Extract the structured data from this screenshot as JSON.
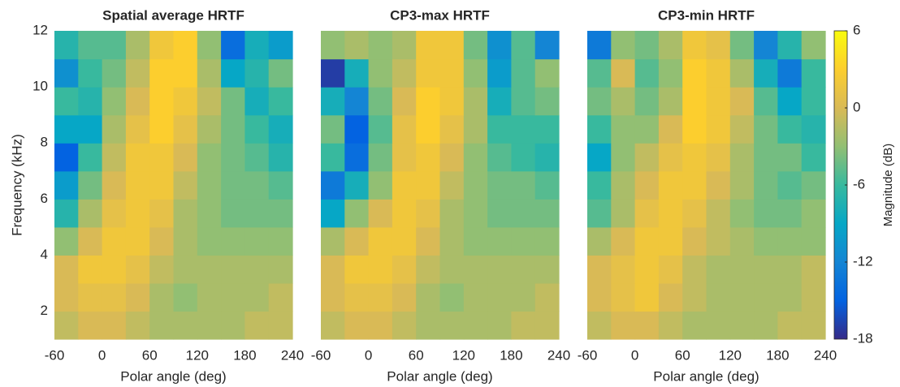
{
  "chart_data": [
    {
      "type": "heatmap",
      "title": "Spatial average HRTF",
      "xlabel": "Polar angle (deg)",
      "ylabel": "Frequency (kHz)",
      "x": [
        -45,
        -15,
        15,
        45,
        75,
        105,
        135,
        165,
        195,
        225
      ],
      "y": [
        1.5,
        2.5,
        3.5,
        4.5,
        5.5,
        6.5,
        7.5,
        8.5,
        9.5,
        10.5,
        11.5
      ],
      "z": [
        [
          -1,
          0,
          0,
          -1,
          -2,
          -2,
          -2,
          -2,
          -1,
          -1
        ],
        [
          0,
          1,
          1,
          0,
          -2,
          -3,
          -2,
          -2,
          -2,
          -1
        ],
        [
          0,
          2,
          2,
          1,
          -1,
          -2,
          -2,
          -2,
          -2,
          -2
        ],
        [
          -3,
          0,
          2,
          2,
          0,
          -2,
          -3,
          -3,
          -3,
          -3
        ],
        [
          -7,
          -2,
          1,
          2,
          1,
          -2,
          -3,
          -4,
          -4,
          -4
        ],
        [
          -10,
          -4,
          0,
          2,
          2,
          -1,
          -3,
          -4,
          -4,
          -5
        ],
        [
          -15,
          -6,
          -1,
          2,
          2,
          0,
          -3,
          -4,
          -5,
          -7
        ],
        [
          -9,
          -9,
          -2,
          1,
          3,
          1,
          -2,
          -4,
          -6,
          -8
        ],
        [
          -6,
          -7,
          -3,
          0,
          3,
          2,
          -1,
          -4,
          -8,
          -6
        ],
        [
          -11,
          -6,
          -4,
          -1,
          3,
          3,
          -2,
          -9,
          -7,
          -4
        ],
        [
          -7,
          -5,
          -5,
          -2,
          2,
          3,
          -3,
          -14,
          -8,
          -10
        ]
      ],
      "xlim": [
        -60,
        240
      ],
      "ylim": [
        1,
        12
      ],
      "xticks": [
        -60,
        0,
        60,
        120,
        180,
        240
      ],
      "yticks": [
        2,
        4,
        6,
        8,
        10,
        12
      ]
    },
    {
      "type": "heatmap",
      "title": "CP3-max HRTF",
      "xlabel": "Polar angle (deg)",
      "x": [
        -45,
        -15,
        15,
        45,
        75,
        105,
        135,
        165,
        195,
        225
      ],
      "y": [
        1.5,
        2.5,
        3.5,
        4.5,
        5.5,
        6.5,
        7.5,
        8.5,
        9.5,
        10.5,
        11.5
      ],
      "z": [
        [
          -1,
          0,
          0,
          -1,
          -2,
          -2,
          -2,
          -2,
          -1,
          -1
        ],
        [
          0,
          1,
          1,
          0,
          -2,
          -3,
          -2,
          -2,
          -2,
          -1
        ],
        [
          0,
          2,
          2,
          1,
          -1,
          -2,
          -2,
          -2,
          -2,
          -2
        ],
        [
          -2,
          0,
          2,
          2,
          0,
          -2,
          -3,
          -3,
          -3,
          -3
        ],
        [
          -9,
          -3,
          0,
          2,
          1,
          -2,
          -3,
          -4,
          -4,
          -4
        ],
        [
          -13,
          -8,
          -3,
          2,
          2,
          -1,
          -3,
          -4,
          -4,
          -5
        ],
        [
          -6,
          -14,
          -4,
          1,
          2,
          0,
          -3,
          -5,
          -6,
          -7
        ],
        [
          -4,
          -15,
          -5,
          1,
          3,
          1,
          -2,
          -6,
          -6,
          -6
        ],
        [
          -8,
          -12,
          -4,
          0,
          3,
          2,
          -2,
          -8,
          -5,
          -4
        ],
        [
          -17,
          -8,
          -3,
          -1,
          2,
          2,
          -3,
          -10,
          -5,
          -3
        ],
        [
          -3,
          -2,
          -3,
          -2,
          2,
          2,
          -4,
          -11,
          -5,
          -12
        ]
      ],
      "xlim": [
        -60,
        240
      ],
      "ylim": [
        1,
        12
      ],
      "xticks": [
        -60,
        0,
        60,
        120,
        180,
        240
      ]
    },
    {
      "type": "heatmap",
      "title": "CP3-min HRTF",
      "xlabel": "Polar angle (deg)",
      "x": [
        -45,
        -15,
        15,
        45,
        75,
        105,
        135,
        165,
        195,
        225
      ],
      "y": [
        1.5,
        2.5,
        3.5,
        4.5,
        5.5,
        6.5,
        7.5,
        8.5,
        9.5,
        10.5,
        11.5
      ],
      "z": [
        [
          -1,
          0,
          0,
          -1,
          -2,
          -2,
          -2,
          -2,
          -1,
          -1
        ],
        [
          0,
          1,
          2,
          0,
          -1,
          -2,
          -2,
          -2,
          -2,
          -1
        ],
        [
          0,
          1,
          2,
          1,
          -1,
          -2,
          -2,
          -2,
          -2,
          -1
        ],
        [
          -2,
          0,
          2,
          2,
          0,
          -1,
          -2,
          -3,
          -3,
          -3
        ],
        [
          -5,
          -2,
          1,
          2,
          1,
          -1,
          -3,
          -4,
          -4,
          -3
        ],
        [
          -6,
          -2,
          0,
          2,
          2,
          0,
          -2,
          -4,
          -5,
          -4
        ],
        [
          -9,
          -3,
          -1,
          1,
          2,
          1,
          -2,
          -4,
          -4,
          -6
        ],
        [
          -6,
          -3,
          -3,
          0,
          3,
          2,
          -1,
          -4,
          -6,
          -7
        ],
        [
          -4,
          -2,
          -4,
          -2,
          3,
          2,
          0,
          -5,
          -9,
          -6
        ],
        [
          -5,
          0,
          -5,
          -3,
          3,
          2,
          -2,
          -8,
          -13,
          -6
        ],
        [
          -13,
          -3,
          -4,
          -2,
          2,
          1,
          -4,
          -12,
          -7,
          -3
        ]
      ],
      "xlim": [
        -60,
        240
      ],
      "ylim": [
        1,
        12
      ],
      "xticks": [
        -60,
        0,
        60,
        120,
        180,
        240
      ]
    }
  ],
  "colorbar": {
    "label": "Magnitude (dB)",
    "clim": [
      -18,
      6
    ],
    "ticks": [
      6,
      0,
      -6,
      -12,
      -18
    ],
    "colormap": [
      "#352a87",
      "#0363e1",
      "#1485d4",
      "#06a7c6",
      "#38b99e",
      "#92bf73",
      "#d9ba56",
      "#fcce2e",
      "#f9fb0e"
    ]
  }
}
